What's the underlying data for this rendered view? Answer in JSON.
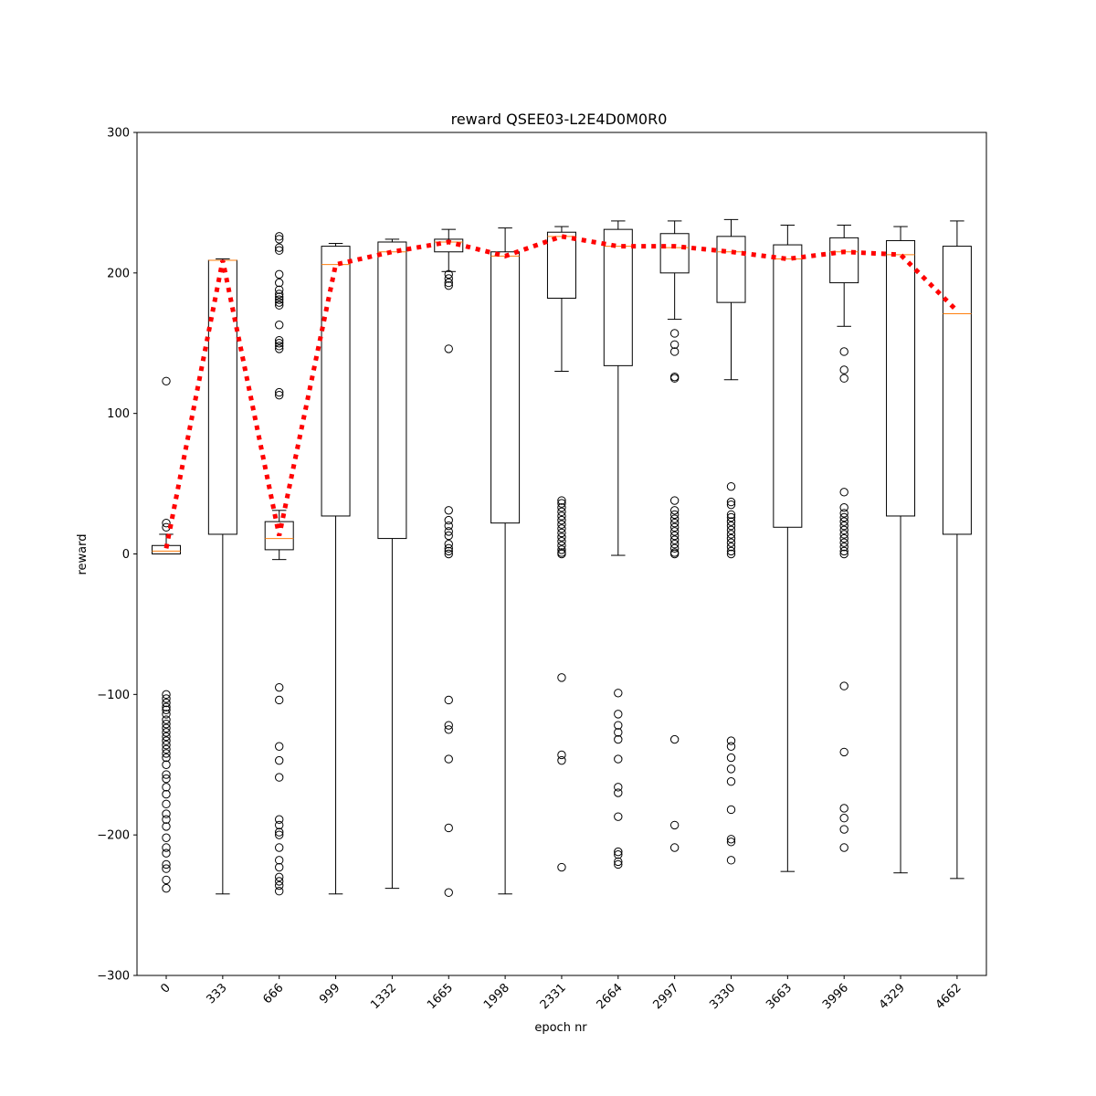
{
  "chart_data": {
    "type": "box",
    "title": "reward QSEE03-L2E4D0M0R0",
    "xlabel": "epoch nr",
    "ylabel": "reward",
    "ylim": [
      -300,
      300
    ],
    "yticks": [
      -300,
      -200,
      -100,
      0,
      100,
      200,
      300
    ],
    "ytick_labels": [
      "−300",
      "−200",
      "−100",
      "0",
      "100",
      "200",
      "300"
    ],
    "grid": false,
    "colors": {
      "box": "#000000",
      "median": "#ff7f0e",
      "mean_line": "#ff0000",
      "flier": "#000000"
    },
    "categories": [
      "0",
      "333",
      "666",
      "999",
      "1332",
      "1665",
      "1998",
      "2331",
      "2664",
      "2997",
      "3330",
      "3663",
      "3996",
      "4329",
      "4662"
    ],
    "boxes": [
      {
        "whislo": 0,
        "q1": 0,
        "med": 2,
        "q3": 6,
        "whishi": 14,
        "fliers": [
          123,
          22,
          19,
          -100,
          -103,
          -106,
          -109,
          -111,
          -114,
          -118,
          -121,
          -124,
          -127,
          -130,
          -133,
          -136,
          -139,
          -142,
          -145,
          -150,
          -157,
          -160,
          -166,
          -171,
          -178,
          -185,
          -189,
          -194,
          -202,
          -209,
          -213,
          -221,
          -224,
          -232,
          -238
        ]
      },
      {
        "whislo": -242,
        "q1": 14,
        "med": 209,
        "q3": 209,
        "whishi": 210,
        "fliers": []
      },
      {
        "whislo": -4,
        "q1": 3,
        "med": 11,
        "q3": 23,
        "whishi": 31,
        "fliers": [
          226,
          224,
          218,
          216,
          199,
          193,
          188,
          185,
          183,
          181,
          179,
          177,
          163,
          152,
          150,
          148,
          146,
          115,
          113,
          -95,
          -104,
          -137,
          -147,
          -159,
          -189,
          -193,
          -198,
          -200,
          -209,
          -218,
          -223,
          -230,
          -233,
          -236,
          -240
        ]
      },
      {
        "whislo": -242,
        "q1": 27,
        "med": 206,
        "q3": 219,
        "whishi": 221,
        "fliers": []
      },
      {
        "whislo": -238,
        "q1": 11,
        "med": 215,
        "q3": 222,
        "whishi": 224,
        "fliers": []
      },
      {
        "whislo": 201,
        "q1": 215,
        "med": 222,
        "q3": 224,
        "whishi": 231,
        "fliers": [
          199,
          196,
          193,
          191,
          146,
          31,
          24,
          20,
          16,
          13,
          7,
          4,
          2,
          0,
          -104,
          -122,
          -125,
          -146,
          -195,
          -241
        ]
      },
      {
        "whislo": -242,
        "q1": 22,
        "med": 212,
        "q3": 215,
        "whishi": 232,
        "fliers": []
      },
      {
        "whislo": 130,
        "q1": 182,
        "med": 226,
        "q3": 229,
        "whishi": 233,
        "fliers": [
          38,
          36,
          33,
          30,
          27,
          24,
          21,
          18,
          15,
          12,
          9,
          6,
          3,
          1,
          0,
          -88,
          -143,
          -147,
          -223
        ]
      },
      {
        "whislo": -1,
        "q1": 134,
        "med": 219,
        "q3": 231,
        "whishi": 237,
        "fliers": [
          -99,
          -114,
          -122,
          -127,
          -132,
          -146,
          -166,
          -170,
          -187,
          -212,
          -214,
          -219,
          -221
        ]
      },
      {
        "whislo": 167,
        "q1": 200,
        "med": 218,
        "q3": 228,
        "whishi": 237,
        "fliers": [
          157,
          149,
          144,
          126,
          125,
          38,
          31,
          28,
          25,
          22,
          19,
          16,
          13,
          10,
          7,
          4,
          1,
          0,
          -132,
          -193,
          -209
        ]
      },
      {
        "whislo": 124,
        "q1": 179,
        "med": 215,
        "q3": 226,
        "whishi": 238,
        "fliers": [
          48,
          37,
          35,
          28,
          26,
          23,
          20,
          17,
          14,
          11,
          8,
          5,
          2,
          0,
          -133,
          -137,
          -145,
          -153,
          -162,
          -182,
          -203,
          -205,
          -218
        ]
      },
      {
        "whislo": -226,
        "q1": 19,
        "med": 210,
        "q3": 220,
        "whishi": 234,
        "fliers": []
      },
      {
        "whislo": 162,
        "q1": 193,
        "med": 215,
        "q3": 225,
        "whishi": 234,
        "fliers": [
          144,
          131,
          125,
          44,
          33,
          29,
          26,
          23,
          20,
          17,
          14,
          11,
          8,
          5,
          2,
          0,
          -94,
          -141,
          -181,
          -188,
          -196,
          -209
        ]
      },
      {
        "whislo": -227,
        "q1": 27,
        "med": 213,
        "q3": 223,
        "whishi": 233,
        "fliers": []
      },
      {
        "whislo": -231,
        "q1": 14,
        "med": 171,
        "q3": 219,
        "whishi": 237,
        "fliers": []
      }
    ],
    "mean_line": {
      "style": "dotted",
      "values": [
        4,
        209,
        13,
        206,
        215,
        222,
        212,
        226,
        219,
        219,
        215,
        210,
        215,
        213,
        173
      ]
    }
  }
}
